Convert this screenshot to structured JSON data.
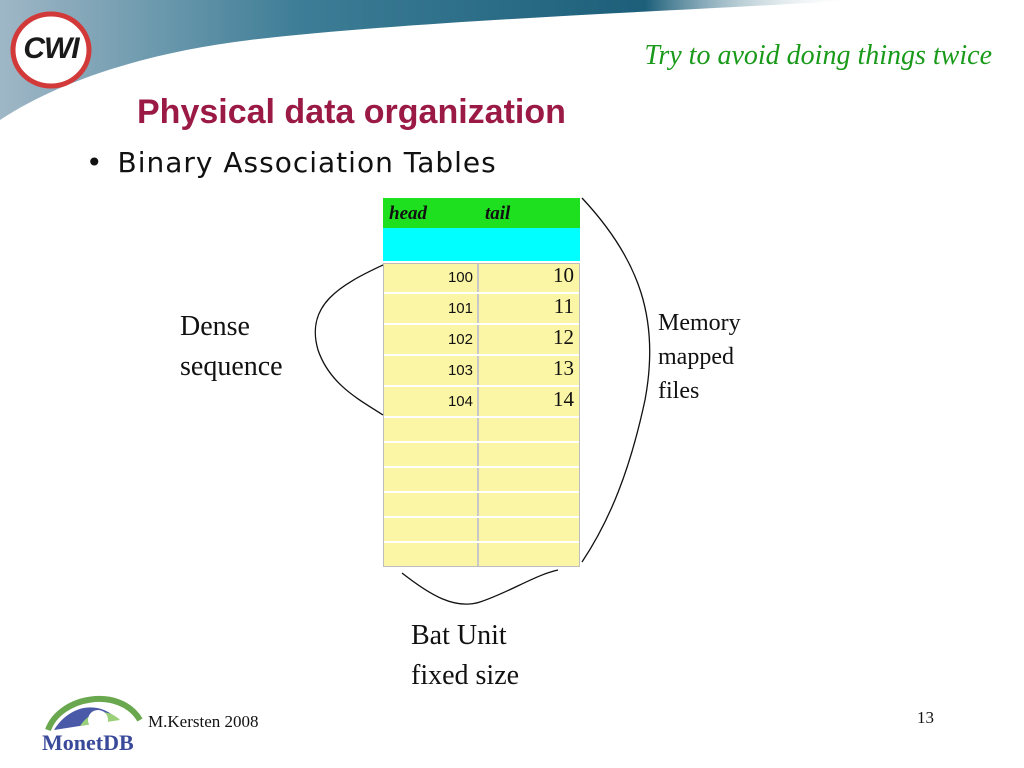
{
  "header": {
    "logo_text": "CWI",
    "tagline": "Try to avoid doing things twice",
    "title": "Physical data organization"
  },
  "bullet": {
    "text": "Binary Association Tables"
  },
  "bat": {
    "head_label": "head",
    "tail_label": "tail",
    "rows": [
      {
        "head": "100",
        "tail": "10"
      },
      {
        "head": "101",
        "tail": "11"
      },
      {
        "head": "102",
        "tail": "12"
      },
      {
        "head": "103",
        "tail": "13"
      },
      {
        "head": "104",
        "tail": "14"
      }
    ]
  },
  "annotations": {
    "dense_line1": "Dense",
    "dense_line2": "sequence",
    "memory_line1": "Memory",
    "memory_line2": "mapped",
    "memory_line3": "files",
    "bat_unit_line1": "Bat Unit",
    "bat_unit_line2": "fixed size"
  },
  "footer": {
    "author": "M.Kersten 2008",
    "page_number": "13",
    "brand": "MonetDB"
  },
  "colors": {
    "title": "#9b1a45",
    "tagline": "#1a9a1a",
    "head_row": "#1ee01e",
    "cyan_row": "#00ffff",
    "cell": "#fbf6a5",
    "banner": "#2e6f8a"
  }
}
